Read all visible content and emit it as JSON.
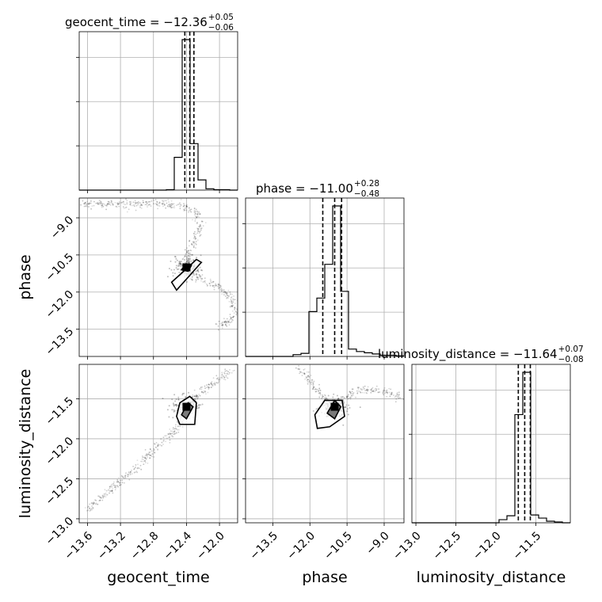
{
  "chart_data": {
    "type": "corner",
    "parameters": [
      "geocent_time",
      "phase",
      "luminosity_distance"
    ],
    "axis_labels": [
      "geocent_time",
      "phase",
      "luminosity_distance"
    ],
    "ranges": {
      "geocent_time": [
        -13.7,
        -11.78
      ],
      "phase": [
        -14.6,
        -8.2
      ],
      "luminosity_distance": [
        -13.05,
        -11.07
      ]
    },
    "ticks": {
      "geocent_time": {
        "values": [
          -13.6,
          -13.2,
          -12.8,
          -12.4,
          -12.0
        ],
        "labels": [
          "−13.6",
          "−13.2",
          "−12.8",
          "−12.4",
          "−12.0"
        ]
      },
      "phase": {
        "values": [
          -13.5,
          -12.0,
          -10.5,
          -9.0
        ],
        "labels": [
          "−13.5",
          "−12.0",
          "−10.5",
          "−9.0"
        ]
      },
      "luminosity_distance": {
        "values": [
          -13.0,
          -12.5,
          -12.0,
          -11.5
        ],
        "labels": [
          "−13.0",
          "−12.5",
          "−12.0",
          "−11.5"
        ]
      }
    },
    "marginal_titles": [
      {
        "param": "geocent_time",
        "main": "geocent_time = −12.36",
        "sup": "+0.05",
        "sub": "−0.06"
      },
      {
        "param": "phase",
        "main": "phase = −11.00",
        "sup": "+0.28",
        "sub": "−0.48"
      },
      {
        "param": "luminosity_distance",
        "main": "luminosity_distance = −11.64",
        "sup": "+0.07",
        "sub": "−0.08"
      }
    ],
    "histograms": {
      "geocent_time": {
        "edges": [
          -13.7,
          -13.604,
          -13.508,
          -13.412,
          -13.316,
          -13.22,
          -13.124,
          -13.028,
          -12.932,
          -12.836,
          -12.74,
          -12.644,
          -12.548,
          -12.452,
          -12.356,
          -12.26,
          -12.164,
          -12.068,
          -11.972,
          -11.876,
          -11.78
        ],
        "counts": [
          0,
          0,
          0,
          0,
          0,
          0,
          0,
          0,
          0,
          0,
          0,
          1,
          74,
          340,
          105,
          23,
          3,
          1,
          1,
          0
        ],
        "quantiles": [
          -12.42,
          -12.36,
          -12.31
        ]
      },
      "phase": {
        "edges": [
          -14.6,
          -14.28,
          -13.96,
          -13.64,
          -13.32,
          -13.0,
          -12.68,
          -12.36,
          -12.04,
          -11.72,
          -11.4,
          -11.08,
          -10.76,
          -10.44,
          -10.12,
          -9.8,
          -9.48,
          -9.16,
          -8.84,
          -8.52,
          -8.2
        ],
        "counts": [
          0,
          0,
          0,
          0,
          0,
          0,
          3,
          5,
          73,
          95,
          150,
          245,
          106,
          12,
          8,
          6,
          4,
          2,
          2,
          1
        ],
        "quantiles": [
          -11.48,
          -11.0,
          -10.72
        ]
      },
      "luminosity_distance": {
        "edges": [
          -13.05,
          -12.951,
          -12.852,
          -12.753,
          -12.654,
          -12.555,
          -12.456,
          -12.357,
          -12.258,
          -12.159,
          -12.06,
          -11.961,
          -11.862,
          -11.763,
          -11.664,
          -11.565,
          -11.466,
          -11.367,
          -11.268,
          -11.169,
          -11.07
        ],
        "counts": [
          0,
          0,
          0,
          0,
          0,
          0,
          0,
          0,
          0,
          0,
          0,
          4,
          9,
          138,
          192,
          10,
          6,
          2,
          1,
          0
        ],
        "quantiles": [
          -11.72,
          -11.64,
          -11.57
        ]
      }
    },
    "scatter_density": {
      "phase_vs_geocent_time": {
        "trail": [
          [
            -13.7,
            -8.45
          ],
          [
            -13.3,
            -8.44
          ],
          [
            -12.9,
            -8.45
          ],
          [
            -12.6,
            -8.47
          ],
          [
            -12.4,
            -8.55
          ],
          [
            -12.28,
            -8.8
          ],
          [
            -12.24,
            -9.2
          ],
          [
            -12.26,
            -9.6
          ],
          [
            -12.32,
            -10.0
          ],
          [
            -12.38,
            -10.45
          ],
          [
            -12.4,
            -10.8
          ],
          [
            -12.36,
            -11.2
          ],
          [
            -12.2,
            -11.5
          ],
          [
            -12.0,
            -11.8
          ],
          [
            -11.85,
            -12.25
          ],
          [
            -11.8,
            -12.8
          ],
          [
            -11.9,
            -13.2
          ],
          [
            -12.05,
            -13.5
          ]
        ],
        "center": [
          -12.4,
          -11.0
        ],
        "contours": [
          [
            [
              -12.46,
              -11.1
            ],
            [
              -12.4,
              -10.86
            ],
            [
              -12.34,
              -10.92
            ],
            [
              -12.38,
              -11.16
            ]
          ],
          [
            [
              -12.58,
              -11.6
            ],
            [
              -12.42,
              -11.12
            ],
            [
              -12.28,
              -10.68
            ],
            [
              -12.22,
              -10.8
            ],
            [
              -12.38,
              -11.4
            ],
            [
              -12.52,
              -11.92
            ]
          ]
        ]
      },
      "luminosity_distance_vs_geocent_time": {
        "trail": [
          [
            -13.6,
            -12.88
          ],
          [
            -13.3,
            -12.62
          ],
          [
            -13.0,
            -12.35
          ],
          [
            -12.7,
            -12.05
          ],
          [
            -12.5,
            -11.85
          ],
          [
            -12.4,
            -11.64
          ],
          [
            -12.3,
            -11.48
          ],
          [
            -12.15,
            -11.35
          ],
          [
            -12.0,
            -11.25
          ],
          [
            -11.85,
            -11.15
          ]
        ],
        "center": [
          -12.4,
          -11.6
        ],
        "contours": [
          [
            [
              -12.46,
              -11.7
            ],
            [
              -12.38,
              -11.55
            ],
            [
              -12.32,
              -11.6
            ],
            [
              -12.4,
              -11.75
            ]
          ],
          [
            [
              -12.52,
              -11.72
            ],
            [
              -12.48,
              -11.55
            ],
            [
              -12.36,
              -11.47
            ],
            [
              -12.28,
              -11.55
            ],
            [
              -12.3,
              -11.82
            ],
            [
              -12.48,
              -11.82
            ]
          ]
        ]
      },
      "luminosity_distance_vs_phase": {
        "trail": [
          [
            -12.5,
            -11.12
          ],
          [
            -12.2,
            -11.18
          ],
          [
            -11.9,
            -11.32
          ],
          [
            -11.6,
            -11.45
          ],
          [
            -11.3,
            -11.55
          ],
          [
            -11.0,
            -11.6
          ],
          [
            -10.6,
            -11.5
          ],
          [
            -10.1,
            -11.4
          ],
          [
            -9.6,
            -11.38
          ],
          [
            -9.1,
            -11.4
          ],
          [
            -8.6,
            -11.45
          ],
          [
            -8.3,
            -11.5
          ]
        ],
        "center": [
          -11.0,
          -11.6
        ],
        "contours": [
          [
            [
              -11.3,
              -11.68
            ],
            [
              -11.0,
              -11.52
            ],
            [
              -10.75,
              -11.6
            ],
            [
              -11.0,
              -11.75
            ]
          ],
          [
            [
              -11.8,
              -11.7
            ],
            [
              -11.4,
              -11.52
            ],
            [
              -10.7,
              -11.52
            ],
            [
              -10.6,
              -11.72
            ],
            [
              -11.2,
              -11.85
            ],
            [
              -11.7,
              -11.87
            ]
          ]
        ]
      }
    }
  }
}
